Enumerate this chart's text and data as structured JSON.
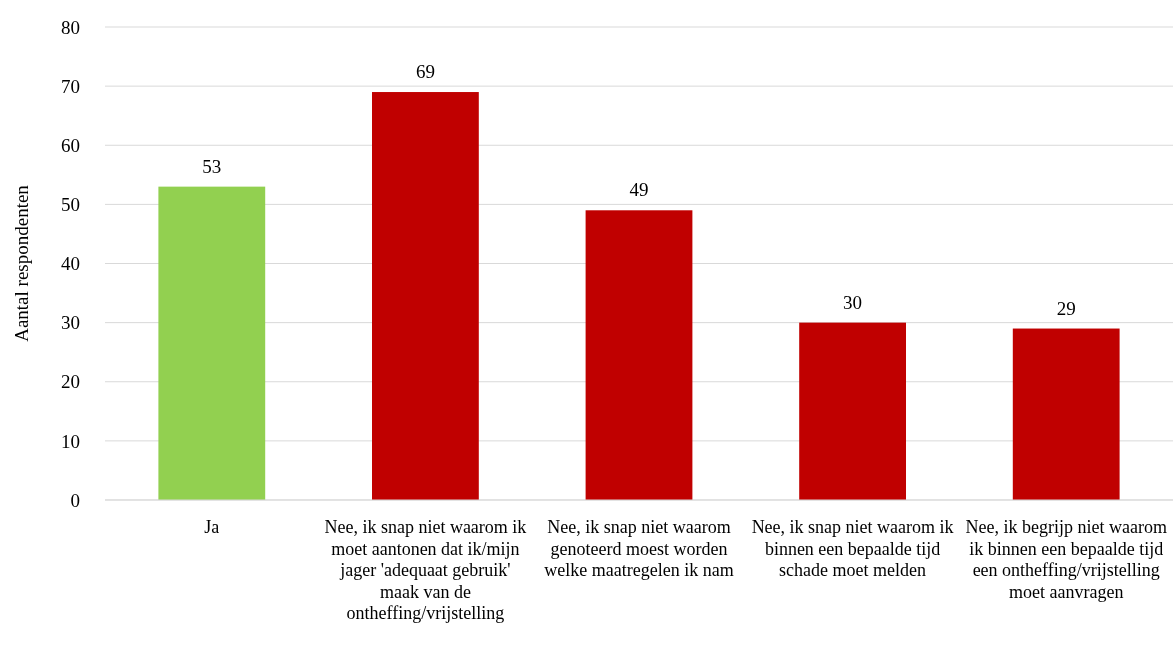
{
  "chart_data": {
    "type": "bar",
    "ylabel": "Aantal respondenten",
    "categories": [
      "Ja",
      "Nee, ik snap niet waarom ik moet aantonen dat ik/mijn jager 'adequaat gebruik' maak van de ontheffing/vrijstelling",
      "Nee, ik snap niet waarom genoteerd moest worden welke maatregelen ik nam",
      "Nee, ik snap niet waarom ik binnen een bepaalde tijd schade moet melden",
      "Nee, ik begrijp niet waarom ik binnen een bepaalde tijd een ontheffing/vrijstelling moet aanvragen"
    ],
    "values": [
      53,
      69,
      49,
      30,
      29
    ],
    "colors": [
      "#92d050",
      "#c00000",
      "#c00000",
      "#c00000",
      "#c00000"
    ],
    "ylim": [
      0,
      80
    ],
    "yticks": [
      0,
      10,
      20,
      30,
      40,
      50,
      60,
      70,
      80
    ],
    "grid": "y",
    "data_labels": true
  }
}
